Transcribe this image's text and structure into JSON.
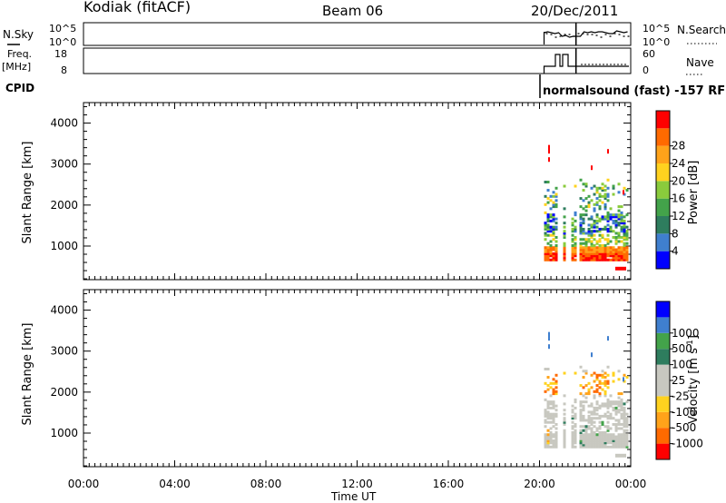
{
  "header": {
    "station": "Kodiak (fitACF)",
    "beam": "Beam 06",
    "date": "20/Dec/2011"
  },
  "side_labels": {
    "nsky": "N.Sky",
    "freq": "Freq.",
    "freq_unit": "[MHz]",
    "cpid": "CPID",
    "nsearch": "N.Search",
    "nave": "Nave"
  },
  "mode_text": "normalsound (fast) -157 RF",
  "colors": {
    "axis": "#000000",
    "power_scale": [
      "#0000ff",
      "#3f7fcf",
      "#2e7d5e",
      "#43a34a",
      "#8acb3c",
      "#ffd21f",
      "#ffa31a",
      "#ff6a00",
      "#ff0000"
    ],
    "velocity_scale": [
      "#ff0000",
      "#ff6a00",
      "#ffa31a",
      "#ffd21f",
      "#c8c8c0",
      "#c8c8c0",
      "#2e7d5e",
      "#43a34a",
      "#3f7fcf",
      "#0000ff"
    ]
  },
  "chart_data": [
    {
      "type": "line",
      "panel": "N.Sky / N.Search",
      "ylabel_left": "N.Sky",
      "ylabel_right": "N.Search",
      "y_ticks": [
        "10^5",
        "10^0"
      ],
      "x_range_hours": [
        0,
        24
      ],
      "data_start_hour": 20.2
    },
    {
      "type": "line",
      "panel": "Freq. / Nave",
      "ylabel_left": "Freq. [MHz]",
      "ylabel_right": "Nave",
      "y_ticks_left": [
        "18",
        "8"
      ],
      "y_ticks_right": [
        "60",
        "0"
      ],
      "x_range_hours": [
        0,
        24
      ],
      "data_start_hour": 20.2
    },
    {
      "type": "heatmap",
      "panel": "Power",
      "ylabel": "Slant Range [km]",
      "y_ticks": [
        "1000",
        "2000",
        "3000",
        "4000"
      ],
      "ylim": [
        180,
        4500
      ],
      "colorbar_label": "Power [dB]",
      "colorbar_ticks": [
        "4",
        "8",
        "12",
        "16",
        "20",
        "24",
        "28"
      ],
      "data_hours": [
        20.2,
        24
      ],
      "echo_bands_km": [
        [
          700,
          1000
        ],
        [
          1000,
          1700
        ],
        [
          1900,
          2500
        ]
      ]
    },
    {
      "type": "heatmap",
      "panel": "Velocity",
      "ylabel": "Slant Range [km]",
      "y_ticks": [
        "1000",
        "2000",
        "3000",
        "4000"
      ],
      "ylim": [
        180,
        4500
      ],
      "colorbar_label": "Velocity [m s",
      "colorbar_label_sup": "-1",
      "colorbar_label_close": "]",
      "colorbar_ticks": [
        "-1000",
        "-500",
        "-100",
        "-25",
        "25",
        "100",
        "500",
        "1000"
      ],
      "data_hours": [
        20.2,
        24
      ]
    },
    {
      "type": "axis",
      "xlabel": "Time UT",
      "x_ticks": [
        "00:00",
        "04:00",
        "08:00",
        "12:00",
        "16:00",
        "20:00",
        "00:00"
      ]
    }
  ]
}
